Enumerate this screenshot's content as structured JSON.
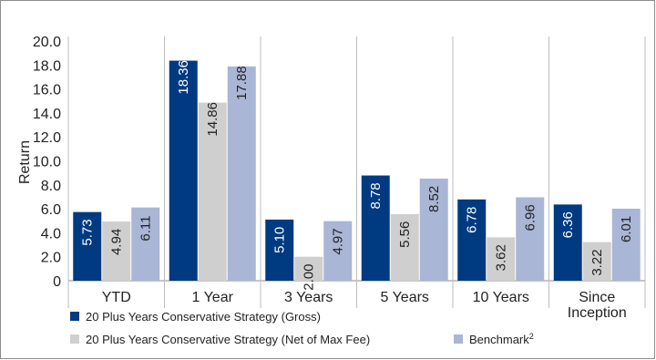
{
  "chart_data": {
    "type": "bar",
    "title": "",
    "xlabel": "",
    "ylabel": "Return",
    "ylim": [
      0,
      20
    ],
    "yticks": [
      "20.0",
      "18.0",
      "16.0",
      "14.0",
      "12.0",
      "10.0",
      "8.0",
      "6.0",
      "4.0",
      "2.0",
      "0"
    ],
    "grid": false,
    "categories": [
      "YTD",
      "1 Year",
      "3 Years",
      "5 Years",
      "10 Years",
      "Since Inception"
    ],
    "category_lines": [
      [
        "YTD"
      ],
      [
        "1 Year"
      ],
      [
        "3 Years"
      ],
      [
        "5 Years"
      ],
      [
        "10 Years"
      ],
      [
        "Since",
        "Inception"
      ]
    ],
    "series": [
      {
        "name": "20 Plus Years Conservative Strategy (Gross)",
        "color": "#003A80",
        "label_color": "#ffffff",
        "values": [
          5.73,
          18.36,
          5.1,
          8.78,
          6.78,
          6.36
        ],
        "labels": [
          "5.73",
          "18.36",
          "5.10",
          "8.78",
          "6.78",
          "6.36"
        ]
      },
      {
        "name": "20 Plus Years Conservative Strategy (Net of Max Fee)",
        "color": "#CFCFCF",
        "label_color": "#222222",
        "values": [
          4.94,
          14.86,
          2.0,
          5.56,
          3.62,
          3.22
        ],
        "labels": [
          "4.94",
          "14.86",
          "2.00",
          "5.56",
          "3.62",
          "3.22"
        ]
      },
      {
        "name": "Benchmark",
        "name_superscript": "2",
        "color": "#A9B6D6",
        "label_color": "#222222",
        "values": [
          6.11,
          17.88,
          4.97,
          8.52,
          6.96,
          6.01
        ],
        "labels": [
          "6.11",
          "17.88",
          "4.97",
          "8.52",
          "6.96",
          "6.01"
        ]
      }
    ],
    "legend_position": "bottom-left"
  }
}
